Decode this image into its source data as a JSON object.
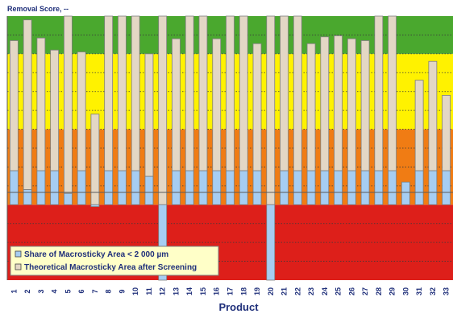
{
  "chart_data": {
    "type": "bar",
    "ylabel": "Removal Score, --",
    "xlabel": "Product",
    "ylim": [
      -2,
      5
    ],
    "grid": true,
    "legend_position": "bottom-left",
    "background_bands": [
      {
        "from": -2,
        "to": 0,
        "color": "#dd1f1a"
      },
      {
        "from": 0,
        "to": 2,
        "color": "#f07c14"
      },
      {
        "from": 2,
        "to": 4,
        "color": "#fff200"
      },
      {
        "from": 4,
        "to": 5,
        "color": "#4aa82e"
      }
    ],
    "categories": [
      "1",
      "2",
      "3",
      "4",
      "5",
      "6",
      "7",
      "8",
      "9",
      "10",
      "11",
      "12",
      "13",
      "14",
      "15",
      "16",
      "17",
      "18",
      "19",
      "20",
      "21",
      "22",
      "23",
      "24",
      "25",
      "26",
      "27",
      "28",
      "29",
      "30",
      "31",
      "32",
      "33"
    ],
    "series": [
      {
        "name": "Share of Macrosticky Area < 2 000 µm",
        "color": "#a6cdf2",
        "values": [
          0.9,
          0.4,
          0.9,
          0.9,
          0.3,
          0.9,
          -0.05,
          0.9,
          0.9,
          0.9,
          0.75,
          -2.0,
          0.9,
          0.9,
          0.9,
          0.9,
          0.9,
          0.9,
          0.9,
          -2.0,
          0.9,
          0.9,
          0.9,
          0.9,
          0.9,
          0.9,
          0.9,
          0.9,
          0.9,
          0.6,
          0.9,
          0.9,
          0.9
        ]
      },
      {
        "name": "Theoretical Macrosticky Area after Screening",
        "color": "#e3d7c5",
        "values": [
          4.35,
          4.9,
          4.42,
          4.1,
          5.0,
          4.05,
          2.4,
          5.0,
          5.0,
          5.0,
          4.0,
          5.0,
          4.4,
          5.0,
          5.0,
          4.4,
          5.0,
          5.0,
          4.27,
          5.0,
          5.0,
          5.0,
          4.27,
          4.45,
          4.48,
          4.4,
          4.35,
          5.0,
          5.0,
          0.3,
          3.3,
          3.8,
          2.9
        ]
      }
    ]
  }
}
